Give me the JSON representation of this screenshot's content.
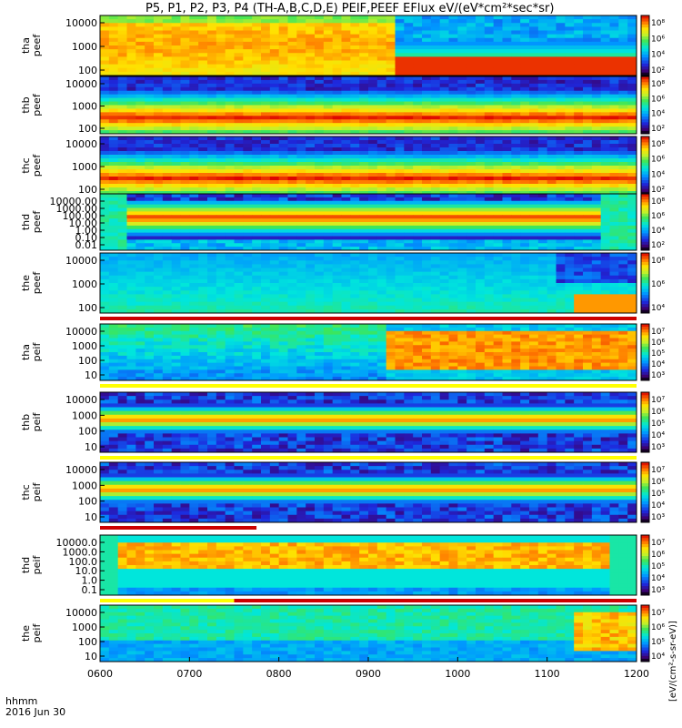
{
  "title": "P5, P1, P2, P3, P4 (TH-A,B,C,D,E) PEIF,PEEF EFlux eV/(eV*cm²*sec*sr)",
  "x_axis": {
    "unit_line1": "hhmm",
    "unit_line2": "2016 Jun 30"
  },
  "colorbar_unit": "[eV/(cm²-s-sr-eV)]",
  "chart_data": [
    {
      "type": "heatmap",
      "ylabel": [
        "tha",
        "peef"
      ],
      "yticks": [
        "10000",
        "1000",
        "100"
      ],
      "ylog": true,
      "ylim": [
        10,
        30000
      ],
      "cbar_ticks": [
        "10⁸",
        "10⁶",
        "10⁴",
        "10²"
      ],
      "profile": "tha_peef",
      "status_bar": null
    },
    {
      "type": "heatmap",
      "ylabel": [
        "thb",
        "peef"
      ],
      "yticks": [
        "10000",
        "1000",
        "100"
      ],
      "ylog": true,
      "ylim": [
        10,
        30000
      ],
      "cbar_ticks": [
        "10⁸",
        "10⁶",
        "10⁴",
        "10²"
      ],
      "profile": "band_e",
      "status_bar": null
    },
    {
      "type": "heatmap",
      "ylabel": [
        "thc",
        "peef"
      ],
      "yticks": [
        "10000",
        "1000",
        "100"
      ],
      "ylog": true,
      "ylim": [
        10,
        30000
      ],
      "cbar_ticks": [
        "10⁸",
        "10⁶",
        "10⁴",
        "10²"
      ],
      "profile": "band_e",
      "status_bar": null
    },
    {
      "type": "heatmap",
      "ylabel": [
        "thd",
        "peef"
      ],
      "yticks": [
        "10000.00",
        "1000.00",
        "100.00",
        "10.00",
        "1.00",
        "0.10",
        "0.01"
      ],
      "ylog": true,
      "ylim": [
        0.01,
        30000
      ],
      "cbar_ticks": [
        "10⁸",
        "10⁶",
        "10⁴",
        "10²"
      ],
      "profile": "thd_e",
      "status_bar": null
    },
    {
      "type": "heatmap",
      "ylabel": [
        "the",
        "peef"
      ],
      "yticks": [
        "10000",
        "1000",
        "100"
      ],
      "ylog": true,
      "ylim": [
        10,
        30000
      ],
      "cbar_ticks": [
        "10⁸",
        "10⁶",
        "10⁴"
      ],
      "profile": "the_peef",
      "status_bar": {
        "color": "#cc0000",
        "from": "0600",
        "to": "1200"
      }
    },
    {
      "type": "heatmap",
      "ylabel": [
        "tha",
        "peif"
      ],
      "yticks": [
        "10000",
        "1000",
        "100",
        "10"
      ],
      "ylog": true,
      "ylim": [
        5,
        30000
      ],
      "cbar_ticks": [
        "10⁷",
        "10⁶",
        "10⁵",
        "10⁴",
        "10³"
      ],
      "profile": "tha_peif",
      "status_bar": {
        "color": "#ffff00",
        "from": "0600",
        "to": "1200"
      }
    },
    {
      "type": "heatmap",
      "ylabel": [
        "thb",
        "peif"
      ],
      "yticks": [
        "10000",
        "1000",
        "100",
        "10"
      ],
      "ylog": true,
      "ylim": [
        5,
        30000
      ],
      "cbar_ticks": [
        "10⁷",
        "10⁶",
        "10⁵",
        "10⁴",
        "10³"
      ],
      "profile": "band_i",
      "status_bar": {
        "color": "#ffff00",
        "from": "0600",
        "to": "1200"
      }
    },
    {
      "type": "heatmap",
      "ylabel": [
        "thc",
        "peif"
      ],
      "yticks": [
        "10000",
        "1000",
        "100",
        "10"
      ],
      "ylog": true,
      "ylim": [
        5,
        30000
      ],
      "cbar_ticks": [
        "10⁷",
        "10⁶",
        "10⁵",
        "10⁴",
        "10³"
      ],
      "profile": "band_i",
      "status_bar": {
        "color": "#cc0000",
        "from": "0600",
        "to": "0775"
      }
    },
    {
      "type": "heatmap",
      "ylabel": [
        "thd",
        "peif"
      ],
      "yticks": [
        "10000.0",
        "1000.0",
        "100.0",
        "10.0",
        "1.0",
        "0.1"
      ],
      "ylog": true,
      "ylim": [
        0.1,
        30000
      ],
      "cbar_ticks": [
        "10⁷",
        "10⁶",
        "10⁵",
        "10⁴",
        "10³"
      ],
      "profile": "thd_i",
      "status_bar": {
        "color": "#ffff00",
        "from": "0600",
        "to": "0750",
        "color2": "#cc0000"
      }
    },
    {
      "type": "heatmap",
      "ylabel": [
        "the",
        "peif"
      ],
      "yticks": [
        "10000",
        "1000",
        "100",
        "10"
      ],
      "ylog": true,
      "ylim": [
        5,
        30000
      ],
      "cbar_ticks": [
        "10⁷",
        "10⁶",
        "10⁵",
        "10⁴"
      ],
      "profile": "the_peif",
      "status_bar": null
    }
  ],
  "xticks": [
    "0600",
    "0700",
    "0800",
    "0900",
    "1000",
    "1100",
    "1200"
  ]
}
